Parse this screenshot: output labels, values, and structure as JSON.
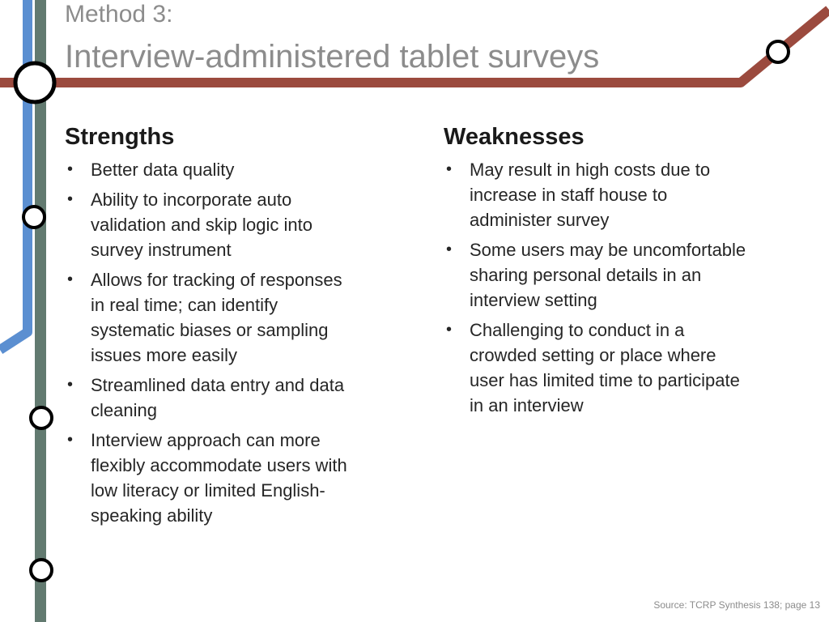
{
  "title": {
    "line1": "Method 3:",
    "line2": "Interview-administered tablet surveys"
  },
  "strengths": {
    "heading": "Strengths",
    "items": [
      "Better data quality",
      "Ability to incorporate auto validation and skip logic into survey instrument",
      "Allows for tracking of responses in real time; can identify systematic biases or sampling issues more easily",
      "Streamlined data entry and data cleaning",
      "Interview approach can more flexibly accommodate users with low literacy or limited English-speaking ability"
    ]
  },
  "weaknesses": {
    "heading": "Weaknesses",
    "items": [
      "May result in high costs due to increase in staff house to administer survey",
      "Some users may be uncomfortable sharing personal details in an interview setting",
      "Challenging to conduct in a crowded  setting or place where user has limited time to participate in an interview"
    ]
  },
  "source": "Source: TCRP Synthesis 138; page 13",
  "colors": {
    "red_line": "#9b4a3e",
    "blue_line": "#5b8fd1",
    "gray_line": "#627a70",
    "title_text": "#8c8c8c"
  }
}
